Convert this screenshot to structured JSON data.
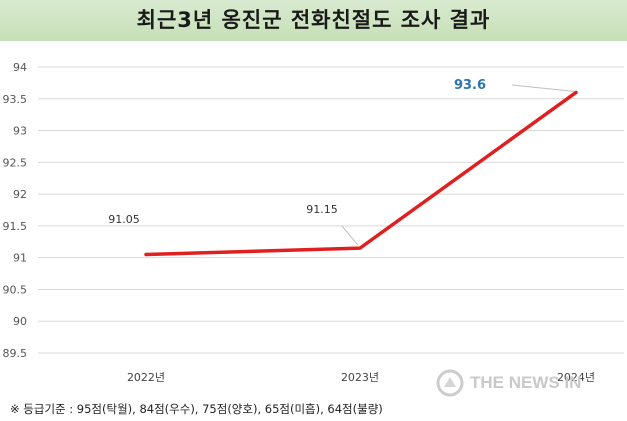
{
  "title": "최근3년 옹진군 전화친절도 조사 결과",
  "footnote": "※ 등급기준 : 95점(탁월), 84점(우수), 75점(양호), 65점(미흡), 64점(불량)",
  "watermark": "THE NEWS IN",
  "colors": {
    "line": "#e02020",
    "highlight_label": "#2e74b5",
    "title_band": "#c6e0b6"
  },
  "chart_data": {
    "type": "line",
    "categories": [
      "2022년",
      "2023년",
      "2024년"
    ],
    "series": [
      {
        "values": [
          91.05,
          91.15,
          93.6
        ]
      }
    ],
    "data_labels": [
      "91.05",
      "91.15",
      "93.6"
    ],
    "highlight_index": 2,
    "yticks": [
      "89.5",
      "90",
      "90.5",
      "91",
      "91.5",
      "92",
      "92.5",
      "93",
      "93.5",
      "94"
    ],
    "ylim": [
      89.5,
      94
    ],
    "grid": "horizontal",
    "title": "",
    "xlabel": "",
    "ylabel": ""
  }
}
